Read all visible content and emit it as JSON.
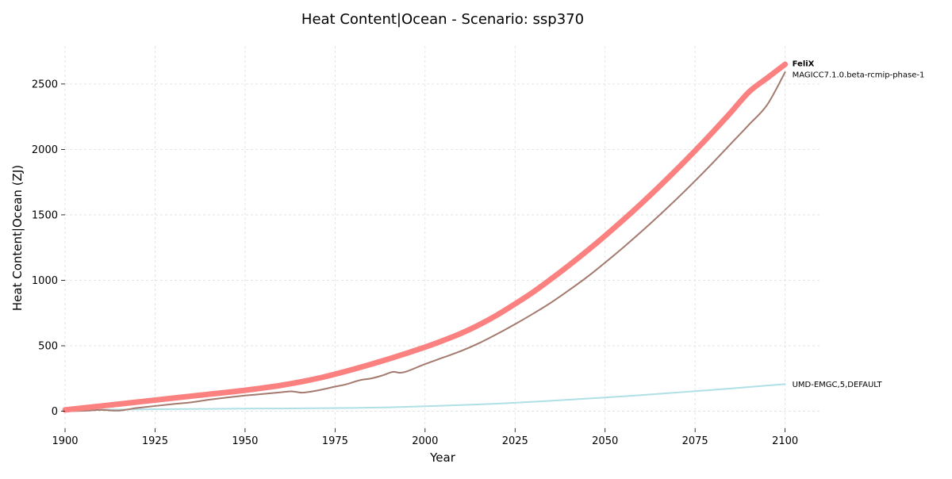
{
  "chart_data": {
    "type": "line",
    "title": "Heat Content|Ocean - Scenario: ssp370",
    "xlabel": "Year",
    "ylabel": "Heat Content|Ocean (ZJ)",
    "xlim": [
      1900,
      2110
    ],
    "ylim": [
      -130,
      2790
    ],
    "xticks": [
      1900,
      1925,
      1950,
      1975,
      2000,
      2025,
      2050,
      2075,
      2100
    ],
    "yticks": [
      0,
      500,
      1000,
      1500,
      2000,
      2500
    ],
    "grid": true,
    "legend": "none (labels at line ends)",
    "series": [
      {
        "name": "UMD-EMGC,5,DEFAULT",
        "color": "#aee0e6",
        "label_bold": false,
        "x": [
          1900,
          1910,
          1920,
          1930,
          1940,
          1950,
          1960,
          1970,
          1980,
          1990,
          2000,
          2010,
          2020,
          2030,
          2040,
          2050,
          2060,
          2070,
          2080,
          2090,
          2100
        ],
        "y": [
          10,
          12,
          14,
          16,
          18,
          20,
          21,
          23,
          25,
          30,
          38,
          47,
          58,
          72,
          88,
          105,
          123,
          143,
          163,
          185,
          207
        ]
      },
      {
        "name": "MAGICC7.1.0.beta-rcmip-phase-1",
        "color": "#a47a6e",
        "label_bold": false,
        "x": [
          1900,
          1905,
          1910,
          1915,
          1920,
          1925,
          1930,
          1935,
          1940,
          1945,
          1950,
          1955,
          1960,
          1963,
          1966,
          1970,
          1975,
          1978,
          1982,
          1985,
          1988,
          1991,
          1993,
          1995,
          2000,
          2005,
          2010,
          2015,
          2020,
          2025,
          2030,
          2035,
          2040,
          2045,
          2050,
          2055,
          2060,
          2065,
          2070,
          2075,
          2080,
          2085,
          2090,
          2095,
          2100
        ],
        "y": [
          0,
          3,
          10,
          5,
          25,
          40,
          55,
          68,
          88,
          105,
          120,
          132,
          145,
          152,
          142,
          158,
          188,
          205,
          238,
          250,
          272,
          300,
          294,
          305,
          360,
          410,
          460,
          520,
          590,
          665,
          745,
          830,
          925,
          1025,
          1135,
          1250,
          1370,
          1495,
          1625,
          1760,
          1900,
          2045,
          2190,
          2340,
          2590
        ]
      },
      {
        "name": "FeliX",
        "color": "#fb8080",
        "label_bold": true,
        "x": [
          1900,
          1910,
          1920,
          1930,
          1940,
          1950,
          1960,
          1970,
          1980,
          1990,
          2000,
          2005,
          2010,
          2015,
          2020,
          2025,
          2030,
          2035,
          2040,
          2045,
          2050,
          2055,
          2060,
          2065,
          2070,
          2075,
          2080,
          2085,
          2090,
          2095,
          2100
        ],
        "y": [
          10,
          40,
          70,
          100,
          130,
          160,
          198,
          250,
          320,
          400,
          490,
          540,
          595,
          660,
          735,
          820,
          910,
          1010,
          1115,
          1225,
          1340,
          1460,
          1585,
          1715,
          1850,
          1990,
          2135,
          2285,
          2440,
          2545,
          2650
        ]
      }
    ]
  }
}
